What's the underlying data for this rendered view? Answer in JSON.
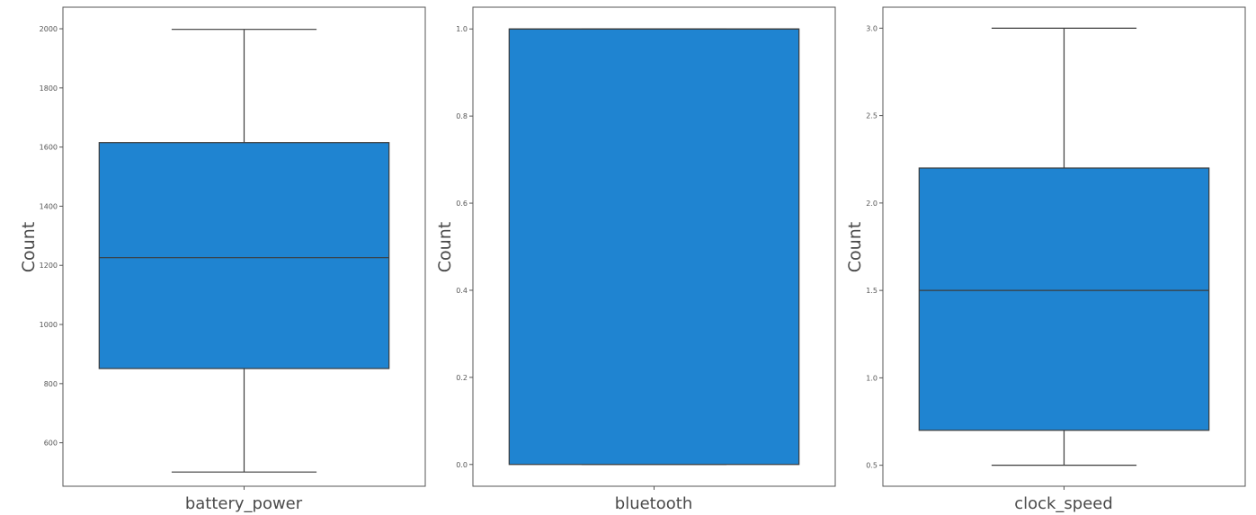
{
  "chart_data": [
    {
      "type": "box",
      "category": "battery_power",
      "ylabel": "Count",
      "ylim": [
        453,
        2073
      ],
      "yticks": [
        600,
        800,
        1000,
        1200,
        1400,
        1600,
        1800,
        2000
      ],
      "ytick_labels": [
        "600",
        "800",
        "1000",
        "1200",
        "1400",
        "1600",
        "1800",
        "2000"
      ],
      "stats": {
        "whisker_low": 501,
        "q1": 851,
        "median": 1226,
        "q3": 1615,
        "whisker_high": 1998
      },
      "color": "#1f84d1"
    },
    {
      "type": "box",
      "category": "bluetooth",
      "ylabel": "Count",
      "ylim": [
        -0.05,
        1.05
      ],
      "yticks": [
        0.0,
        0.2,
        0.4,
        0.6,
        0.8,
        1.0
      ],
      "ytick_labels": [
        "0.0",
        "0.2",
        "0.4",
        "0.6",
        "0.8",
        "1.0"
      ],
      "stats": {
        "whisker_low": 0.0,
        "q1": 0.0,
        "median": 1.0,
        "q3": 1.0,
        "whisker_high": 1.0
      },
      "color": "#1f84d1"
    },
    {
      "type": "box",
      "category": "clock_speed",
      "ylabel": "Count",
      "ylim": [
        0.38,
        3.12
      ],
      "yticks": [
        0.5,
        1.0,
        1.5,
        2.0,
        2.5,
        3.0
      ],
      "ytick_labels": [
        "0.5",
        "1.0",
        "1.5",
        "2.0",
        "2.5",
        "3.0"
      ],
      "stats": {
        "whisker_low": 0.5,
        "q1": 0.7,
        "median": 1.5,
        "q3": 2.2,
        "whisker_high": 3.0
      },
      "color": "#1f84d1"
    }
  ]
}
